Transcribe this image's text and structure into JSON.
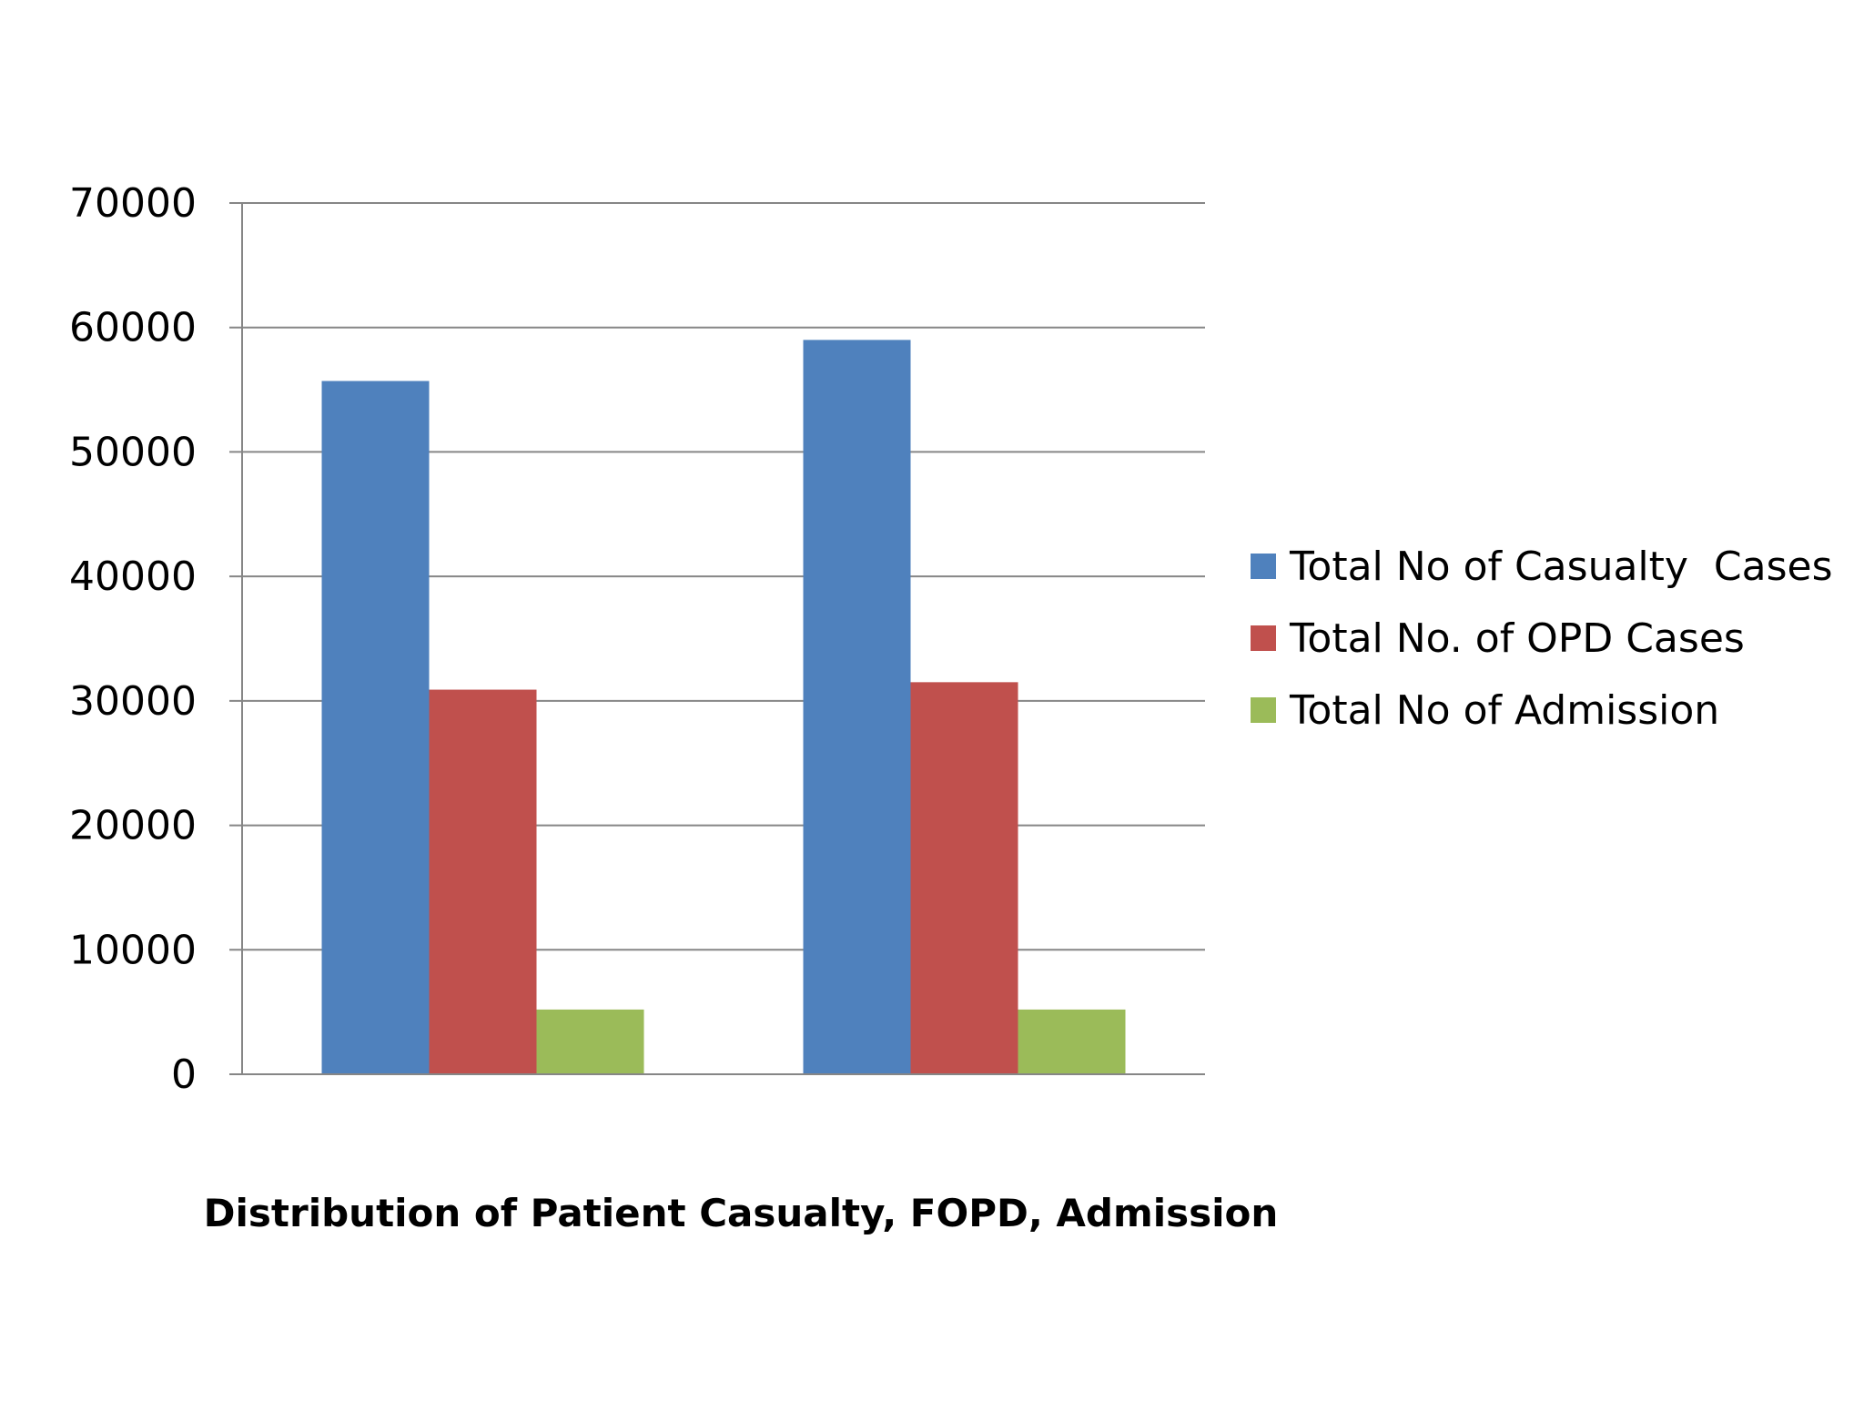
{
  "chart_data": {
    "type": "bar",
    "title": "Distribution of Patient Casualty, FOPD, Admission",
    "xlabel": "",
    "ylabel": "",
    "categories": [
      "",
      ""
    ],
    "ylim": [
      0,
      70000
    ],
    "yticks": [
      "0",
      "10000",
      "20000",
      "30000",
      "40000",
      "50000",
      "60000",
      "70000"
    ],
    "grid": true,
    "legend_position": "right",
    "series": [
      {
        "name": "Total No of Casualty  Cases",
        "color": "#4F81BD",
        "values": [
          55700,
          59000
        ]
      },
      {
        "name": "Total No. of OPD Cases",
        "color": "#C0504D",
        "values": [
          30900,
          31500
        ]
      },
      {
        "name": "Total No of Admission",
        "color": "#9BBB59",
        "values": [
          5200,
          5200
        ]
      }
    ]
  }
}
